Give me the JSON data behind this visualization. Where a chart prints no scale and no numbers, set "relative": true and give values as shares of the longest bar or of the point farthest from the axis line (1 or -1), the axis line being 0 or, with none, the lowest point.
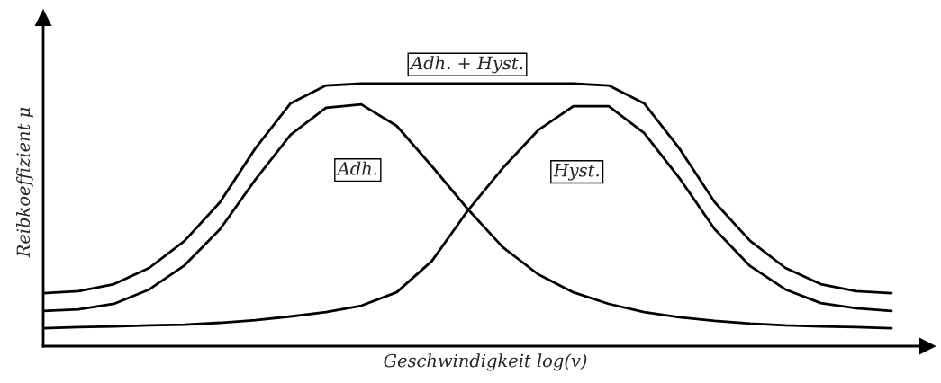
{
  "chart_data": {
    "type": "line",
    "relative": true,
    "xlabel": "Geschwindigkeit log(v)",
    "ylabel": "Reibkoeffizient μ",
    "categories": [
      null,
      null,
      null,
      null,
      null,
      null,
      null,
      null,
      null,
      null,
      null,
      null,
      null,
      null,
      null,
      null,
      null,
      null,
      null,
      null,
      null,
      null,
      null,
      null,
      null
    ],
    "series": [
      {
        "name": "Adh. + Hyst.",
        "color": "#000000",
        "values": [
          0.202,
          0.209,
          0.236,
          0.298,
          0.401,
          0.548,
          0.753,
          0.925,
          0.993,
          1,
          1,
          1,
          1,
          1,
          1,
          1,
          0.993,
          0.925,
          0.753,
          0.548,
          0.401,
          0.298,
          0.236,
          0.209,
          0.202
        ]
      },
      {
        "name": "Adh.",
        "color": "#000000",
        "values": [
          0.134,
          0.14,
          0.161,
          0.216,
          0.308,
          0.445,
          0.634,
          0.805,
          0.908,
          0.921,
          0.839,
          0.685,
          0.524,
          0.377,
          0.274,
          0.205,
          0.161,
          0.13,
          0.11,
          0.096,
          0.086,
          0.079,
          0.075,
          0.072,
          0.068
        ]
      },
      {
        "name": "Hyst.",
        "color": "#000000",
        "values": [
          0.068,
          0.072,
          0.075,
          0.079,
          0.082,
          0.089,
          0.099,
          0.113,
          0.13,
          0.154,
          0.205,
          0.325,
          0.514,
          0.678,
          0.822,
          0.914,
          0.914,
          0.812,
          0.64,
          0.445,
          0.305,
          0.216,
          0.164,
          0.144,
          0.134
        ]
      }
    ],
    "legend": false,
    "marker": "none",
    "line_style": "solid"
  }
}
